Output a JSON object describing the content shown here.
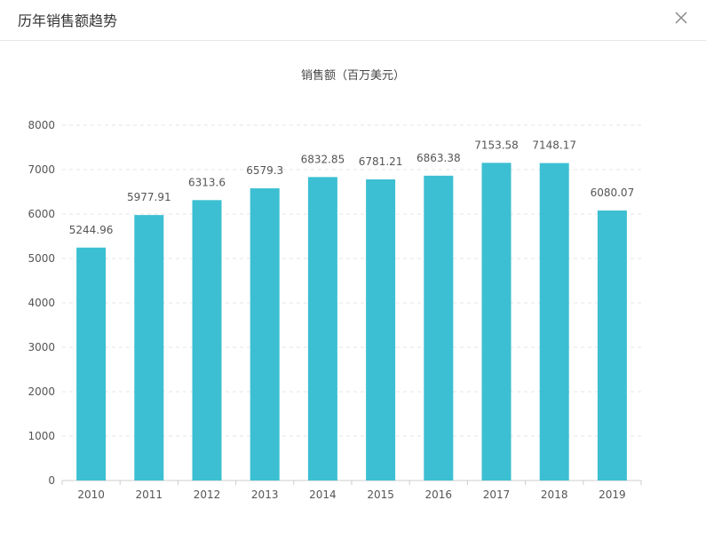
{
  "dialog": {
    "title": "历年销售额趋势",
    "close_icon": "close-icon"
  },
  "colors": {
    "bar": "#3cbfd2",
    "grid": "#e6e6e6",
    "axis": "#cccccc"
  },
  "chart_data": {
    "type": "bar",
    "title": "销售额（百万美元）",
    "xlabel": "",
    "ylabel": "",
    "categories": [
      "2010",
      "2011",
      "2012",
      "2013",
      "2014",
      "2015",
      "2016",
      "2017",
      "2018",
      "2019"
    ],
    "values": [
      5244.96,
      5977.91,
      6313.6,
      6579.3,
      6832.85,
      6781.21,
      6863.38,
      7153.58,
      7148.17,
      6080.07
    ],
    "value_labels": [
      "5244.96",
      "5977.91",
      "6313.6",
      "6579.3",
      "6832.85",
      "6781.21",
      "6863.38",
      "7153.58",
      "7148.17",
      "6080.07"
    ],
    "ylim": [
      0,
      8000
    ],
    "yticks": [
      0,
      1000,
      2000,
      3000,
      4000,
      5000,
      6000,
      7000,
      8000
    ],
    "grid": true,
    "legend": "none"
  }
}
